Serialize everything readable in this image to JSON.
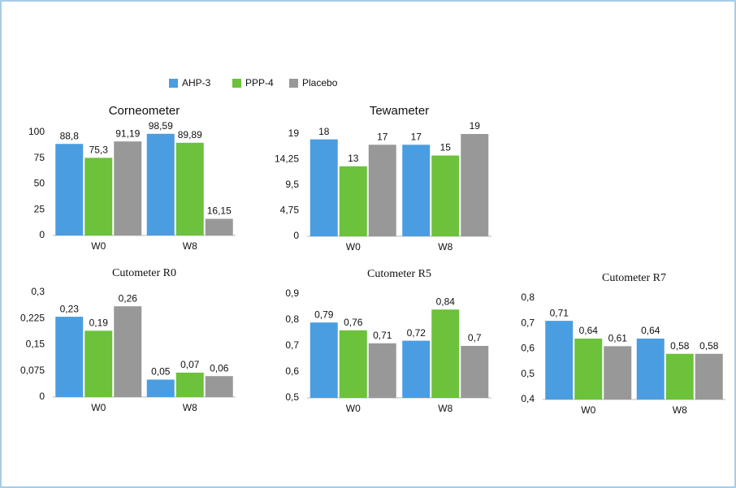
{
  "chart_data": [
    {
      "type": "bar",
      "title": "Corneometer",
      "categories": [
        "W0",
        "W8"
      ],
      "series": [
        {
          "name": "AHP-3",
          "color": "#4a9de0",
          "values": [
            88.8,
            98.59
          ],
          "value_labels": [
            "88,8",
            "98,59"
          ]
        },
        {
          "name": "PPP-4",
          "color": "#6cc23a",
          "values": [
            75.3,
            89.89
          ],
          "value_labels": [
            "75,3",
            "89,89"
          ]
        },
        {
          "name": "Placebo",
          "color": "#989898",
          "values": [
            91.19,
            16.15
          ],
          "value_labels": [
            "91,19",
            "16,15"
          ]
        }
      ],
      "ylim": [
        0,
        100
      ],
      "yticks": [
        0,
        25,
        50,
        75,
        100
      ]
    },
    {
      "type": "bar",
      "title": "Tewameter",
      "categories": [
        "W0",
        "W8"
      ],
      "series": [
        {
          "name": "AHP-3",
          "color": "#4a9de0",
          "values": [
            18,
            17
          ]
        },
        {
          "name": "PPP-4",
          "color": "#6cc23a",
          "values": [
            13,
            15
          ]
        },
        {
          "name": "Placebo",
          "color": "#989898",
          "values": [
            17,
            19
          ]
        }
      ],
      "ylim": [
        0,
        19
      ],
      "yticks": [
        0,
        {
          "value": 4.75,
          "label": "4,75"
        },
        {
          "value": 9.5,
          "label": "9,5"
        },
        {
          "value": 14.25,
          "label": "14,25"
        },
        19
      ]
    },
    {
      "type": "bar",
      "title": "Cutometer R0",
      "categories": [
        "W0",
        "W8"
      ],
      "series": [
        {
          "name": "AHP-3",
          "color": "#4a9de0",
          "values": [
            0.23,
            0.05
          ],
          "value_labels": [
            "0,23",
            "0,05"
          ]
        },
        {
          "name": "PPP-4",
          "color": "#6cc23a",
          "values": [
            0.19,
            0.07
          ],
          "value_labels": [
            "0,19",
            "0,07"
          ]
        },
        {
          "name": "Placebo",
          "color": "#989898",
          "values": [
            0.26,
            0.06
          ],
          "value_labels": [
            "0,26",
            "0,06"
          ]
        }
      ],
      "ylim": [
        0,
        0.3
      ],
      "yticks": [
        0,
        {
          "value": 0.075,
          "label": "0,075"
        },
        {
          "value": 0.15,
          "label": "0,15"
        },
        {
          "value": 0.225,
          "label": "0,225"
        },
        {
          "value": 0.3,
          "label": "0,3"
        }
      ]
    },
    {
      "type": "bar",
      "title": "Cutometer R5",
      "categories": [
        "W0",
        "W8"
      ],
      "series": [
        {
          "name": "AHP-3",
          "color": "#4a9de0",
          "values": [
            0.79,
            0.72
          ],
          "value_labels": [
            "0,79",
            "0,72"
          ]
        },
        {
          "name": "PPP-4",
          "color": "#6cc23a",
          "values": [
            0.76,
            0.84
          ],
          "value_labels": [
            "0,76",
            "0,84"
          ]
        },
        {
          "name": "Placebo",
          "color": "#989898",
          "values": [
            0.71,
            0.7
          ],
          "value_labels": [
            "0,71",
            "0,7"
          ]
        }
      ],
      "ylim": [
        0.5,
        0.9
      ],
      "yticks": [
        {
          "value": 0.5,
          "label": "0,5"
        },
        {
          "value": 0.6,
          "label": "0,6"
        },
        {
          "value": 0.7,
          "label": "0,7"
        },
        {
          "value": 0.8,
          "label": "0,8"
        },
        {
          "value": 0.9,
          "label": "0,9"
        }
      ]
    },
    {
      "type": "bar",
      "title": "Cutometer R7",
      "categories": [
        "W0",
        "W8"
      ],
      "series": [
        {
          "name": "AHP-3",
          "color": "#4a9de0",
          "values": [
            0.71,
            0.64
          ],
          "value_labels": [
            "0,71",
            "0,64"
          ]
        },
        {
          "name": "PPP-4",
          "color": "#6cc23a",
          "values": [
            0.64,
            0.58
          ],
          "value_labels": [
            "0,64",
            "0,58"
          ]
        },
        {
          "name": "Placebo",
          "color": "#989898",
          "values": [
            0.61,
            0.58
          ],
          "value_labels": [
            "0,61",
            "0,58"
          ]
        }
      ],
      "ylim": [
        0.4,
        0.8
      ],
      "yticks": [
        {
          "value": 0.4,
          "label": "0,4"
        },
        {
          "value": 0.5,
          "label": "0,5"
        },
        {
          "value": 0.6,
          "label": "0,6"
        },
        {
          "value": 0.7,
          "label": "0,7"
        },
        {
          "value": 0.8,
          "label": "0,8"
        }
      ]
    }
  ]
}
